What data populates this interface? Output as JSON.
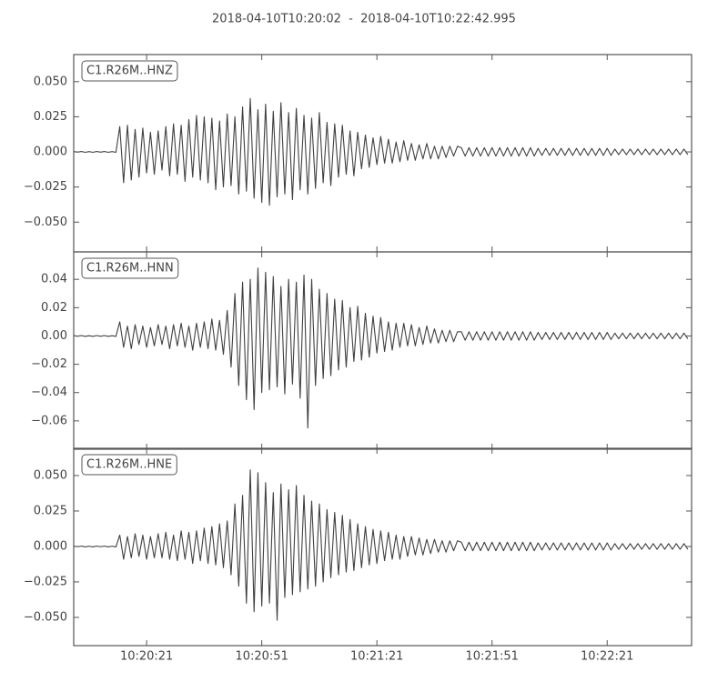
{
  "title": "2018-04-10T10:20:02  -  2018-04-10T10:22:42.995",
  "chart_data": [
    {
      "type": "line",
      "x": [
        0,
        1,
        2,
        3,
        4,
        5,
        6,
        7,
        8,
        9,
        10,
        11,
        12,
        13,
        14,
        15,
        16,
        17,
        18,
        19,
        20,
        21,
        22,
        23,
        24,
        25,
        26,
        27,
        28,
        29,
        30,
        31,
        32,
        33,
        34,
        35,
        36,
        37,
        38,
        39,
        40,
        41,
        42,
        43,
        44,
        45,
        46,
        47,
        48,
        49,
        50,
        51,
        52,
        53,
        54,
        55,
        56,
        57,
        58,
        59,
        60,
        61,
        62,
        63,
        64,
        65,
        66,
        67,
        68,
        69,
        70,
        71,
        72,
        73,
        74,
        75,
        76,
        77,
        78,
        79,
        80,
        81,
        82,
        83,
        84,
        85,
        86,
        87,
        88,
        89,
        90,
        91,
        92,
        93,
        94,
        95,
        96,
        97,
        98,
        99,
        100,
        101,
        102,
        103,
        104,
        105,
        106,
        107,
        108,
        109,
        110,
        111,
        112,
        113,
        114,
        115,
        116,
        117,
        118,
        119,
        120,
        121,
        122,
        123,
        124,
        125,
        126,
        127,
        128,
        129,
        130,
        131,
        132,
        133,
        134,
        135,
        136,
        137,
        138,
        139,
        140,
        141,
        142,
        143,
        144,
        145,
        146,
        147,
        148,
        149,
        150,
        151,
        152,
        153,
        154,
        155,
        156,
        157,
        158,
        159,
        160
      ],
      "series": [
        {
          "name": "C1.R26M..HNZ",
          "color": "#404040",
          "values": [
            0.0003,
            -0.0002,
            0.0003,
            -0.0003,
            0.0002,
            -0.0003,
            0.0003,
            -0.0002,
            0.0003,
            -0.0003,
            0.0002,
            -0.0003,
            0.018,
            -0.022,
            0.019,
            -0.02,
            0.016,
            -0.018,
            0.017,
            -0.015,
            0.014,
            -0.016,
            0.015,
            -0.013,
            0.018,
            -0.017,
            0.02,
            -0.016,
            0.019,
            -0.021,
            0.023,
            -0.018,
            0.026,
            -0.02,
            0.025,
            -0.022,
            0.024,
            -0.027,
            0.022,
            -0.025,
            0.027,
            -0.024,
            0.025,
            -0.03,
            0.032,
            -0.028,
            0.038,
            -0.033,
            0.03,
            -0.036,
            0.034,
            -0.038,
            0.029,
            -0.032,
            0.035,
            -0.03,
            0.028,
            -0.034,
            0.031,
            -0.027,
            0.026,
            -0.03,
            0.024,
            -0.026,
            0.028,
            -0.022,
            0.021,
            -0.024,
            0.02,
            -0.018,
            0.019,
            -0.016,
            0.015,
            -0.017,
            0.014,
            -0.012,
            0.012,
            -0.011,
            0.01,
            -0.009,
            0.011,
            -0.008,
            0.009,
            -0.008,
            0.007,
            -0.007,
            0.008,
            -0.006,
            0.006,
            -0.006,
            0.005,
            -0.005,
            0.006,
            -0.005,
            0.004,
            -0.005,
            0.004,
            -0.004,
            0.004,
            -0.003,
            0.004,
            0.003,
            -0.003,
            0.003,
            -0.003,
            0.003,
            -0.003,
            0.003,
            -0.003,
            0.003,
            -0.003,
            0.003,
            -0.003,
            0.003,
            -0.003,
            0.003,
            -0.003,
            0.003,
            -0.003,
            0.003,
            -0.003,
            0.0025,
            -0.0025,
            0.0025,
            -0.0025,
            0.0025,
            -0.0025,
            0.0025,
            -0.0025,
            0.0025,
            -0.0025,
            0.0025,
            -0.0025,
            0.0025,
            -0.0025,
            0.0025,
            -0.0025,
            0.0025,
            -0.0025,
            0.0025,
            -0.0025,
            0.002,
            -0.002,
            0.002,
            -0.002,
            0.002,
            -0.002,
            0.002,
            -0.002,
            0.002,
            -0.002,
            0.002,
            -0.002,
            0.002,
            -0.002,
            0.002,
            -0.002,
            0.002,
            -0.002,
            0.002,
            -0.002
          ]
        }
      ],
      "xlim": [
        0,
        160.995
      ],
      "xticks": [
        19,
        49,
        79,
        109,
        139
      ],
      "ylim": [
        -0.0712,
        0.0693
      ],
      "yticks": [
        {
          "value": 0.05,
          "label": "0.050"
        },
        {
          "value": 0.025,
          "label": "0.025"
        },
        {
          "value": 0,
          "label": "0.000"
        },
        {
          "value": -0.025,
          "label": "−0.025"
        },
        {
          "value": -0.05,
          "label": "−0.050"
        }
      ]
    },
    {
      "type": "line",
      "x": [
        0,
        1,
        2,
        3,
        4,
        5,
        6,
        7,
        8,
        9,
        10,
        11,
        12,
        13,
        14,
        15,
        16,
        17,
        18,
        19,
        20,
        21,
        22,
        23,
        24,
        25,
        26,
        27,
        28,
        29,
        30,
        31,
        32,
        33,
        34,
        35,
        36,
        37,
        38,
        39,
        40,
        41,
        42,
        43,
        44,
        45,
        46,
        47,
        48,
        49,
        50,
        51,
        52,
        53,
        54,
        55,
        56,
        57,
        58,
        59,
        60,
        61,
        62,
        63,
        64,
        65,
        66,
        67,
        68,
        69,
        70,
        71,
        72,
        73,
        74,
        75,
        76,
        77,
        78,
        79,
        80,
        81,
        82,
        83,
        84,
        85,
        86,
        87,
        88,
        89,
        90,
        91,
        92,
        93,
        94,
        95,
        96,
        97,
        98,
        99,
        100,
        101,
        102,
        103,
        104,
        105,
        106,
        107,
        108,
        109,
        110,
        111,
        112,
        113,
        114,
        115,
        116,
        117,
        118,
        119,
        120,
        121,
        122,
        123,
        124,
        125,
        126,
        127,
        128,
        129,
        130,
        131,
        132,
        133,
        134,
        135,
        136,
        137,
        138,
        139,
        140,
        141,
        142,
        143,
        144,
        145,
        146,
        147,
        148,
        149,
        150,
        151,
        152,
        153,
        154,
        155,
        156,
        157,
        158,
        159,
        160
      ],
      "series": [
        {
          "name": "C1.R26M..HNN",
          "color": "#404040",
          "values": [
            0.0003,
            -0.0002,
            0.0003,
            -0.0003,
            0.0002,
            -0.0003,
            0.0003,
            -0.0002,
            0.0003,
            -0.0003,
            0.0002,
            -0.0003,
            0.01,
            -0.008,
            0.007,
            -0.009,
            0.008,
            -0.006,
            0.007,
            -0.008,
            0.006,
            -0.007,
            0.008,
            -0.006,
            0.007,
            -0.009,
            0.008,
            -0.007,
            0.009,
            -0.008,
            0.007,
            -0.01,
            0.009,
            -0.008,
            0.01,
            -0.009,
            0.012,
            -0.01,
            0.011,
            -0.013,
            0.018,
            -0.022,
            0.03,
            -0.035,
            0.038,
            -0.045,
            0.04,
            -0.052,
            0.048,
            -0.04,
            0.045,
            -0.038,
            0.042,
            -0.036,
            0.035,
            -0.041,
            0.04,
            -0.034,
            0.038,
            -0.044,
            0.043,
            -0.065,
            0.04,
            -0.035,
            0.033,
            -0.03,
            0.03,
            -0.028,
            0.026,
            -0.024,
            0.025,
            -0.022,
            0.02,
            -0.018,
            0.021,
            -0.017,
            0.016,
            -0.015,
            0.014,
            -0.012,
            0.013,
            -0.011,
            0.01,
            -0.01,
            0.009,
            -0.008,
            0.009,
            -0.007,
            0.008,
            -0.007,
            0.006,
            -0.006,
            0.007,
            -0.005,
            0.005,
            -0.005,
            0.004,
            -0.004,
            0.004,
            -0.004,
            0.003,
            0.003,
            -0.003,
            0.003,
            -0.003,
            0.003,
            -0.003,
            0.003,
            -0.003,
            0.003,
            -0.003,
            0.003,
            -0.003,
            0.003,
            -0.003,
            0.003,
            -0.003,
            0.003,
            -0.003,
            0.003,
            -0.003,
            0.0025,
            -0.0025,
            0.0025,
            -0.0025,
            0.0025,
            -0.0025,
            0.0025,
            -0.0025,
            0.0025,
            -0.0025,
            0.0025,
            -0.0025,
            0.0025,
            -0.0025,
            0.0025,
            -0.0025,
            0.0025,
            -0.0025,
            0.0025,
            -0.0025,
            0.002,
            -0.002,
            0.002,
            -0.002,
            0.002,
            -0.002,
            0.002,
            -0.002,
            0.002,
            -0.002,
            0.002,
            -0.002,
            0.002,
            -0.002,
            0.002,
            -0.002,
            0.002,
            -0.002,
            0.002,
            -0.002
          ]
        }
      ],
      "xlim": [
        0,
        160.995
      ],
      "xticks": [
        19,
        49,
        79,
        109,
        139
      ],
      "ylim": [
        -0.08,
        0.0594
      ],
      "yticks": [
        {
          "value": 0.04,
          "label": "0.04"
        },
        {
          "value": 0.02,
          "label": "0.02"
        },
        {
          "value": 0,
          "label": "0.00"
        },
        {
          "value": -0.02,
          "label": "−0.02"
        },
        {
          "value": -0.04,
          "label": "−0.04"
        },
        {
          "value": -0.06,
          "label": "−0.06"
        }
      ]
    },
    {
      "type": "line",
      "x": [
        0,
        1,
        2,
        3,
        4,
        5,
        6,
        7,
        8,
        9,
        10,
        11,
        12,
        13,
        14,
        15,
        16,
        17,
        18,
        19,
        20,
        21,
        22,
        23,
        24,
        25,
        26,
        27,
        28,
        29,
        30,
        31,
        32,
        33,
        34,
        35,
        36,
        37,
        38,
        39,
        40,
        41,
        42,
        43,
        44,
        45,
        46,
        47,
        48,
        49,
        50,
        51,
        52,
        53,
        54,
        55,
        56,
        57,
        58,
        59,
        60,
        61,
        62,
        63,
        64,
        65,
        66,
        67,
        68,
        69,
        70,
        71,
        72,
        73,
        74,
        75,
        76,
        77,
        78,
        79,
        80,
        81,
        82,
        83,
        84,
        85,
        86,
        87,
        88,
        89,
        90,
        91,
        92,
        93,
        94,
        95,
        96,
        97,
        98,
        99,
        100,
        101,
        102,
        103,
        104,
        105,
        106,
        107,
        108,
        109,
        110,
        111,
        112,
        113,
        114,
        115,
        116,
        117,
        118,
        119,
        120,
        121,
        122,
        123,
        124,
        125,
        126,
        127,
        128,
        129,
        130,
        131,
        132,
        133,
        134,
        135,
        136,
        137,
        138,
        139,
        140,
        141,
        142,
        143,
        144,
        145,
        146,
        147,
        148,
        149,
        150,
        151,
        152,
        153,
        154,
        155,
        156,
        157,
        158,
        159,
        160
      ],
      "series": [
        {
          "name": "C1.R26M..HNE",
          "color": "#404040",
          "values": [
            0.0003,
            -0.0002,
            0.0003,
            -0.0003,
            0.0002,
            -0.0003,
            0.0003,
            -0.0002,
            0.0003,
            -0.0003,
            0.0002,
            -0.0003,
            0.008,
            -0.009,
            0.007,
            -0.008,
            0.009,
            -0.007,
            0.008,
            -0.009,
            0.007,
            -0.008,
            0.009,
            -0.008,
            0.01,
            -0.009,
            0.008,
            -0.01,
            0.011,
            -0.009,
            0.01,
            -0.012,
            0.011,
            -0.01,
            0.013,
            -0.012,
            0.014,
            -0.013,
            0.016,
            -0.015,
            0.018,
            -0.02,
            0.03,
            -0.028,
            0.036,
            -0.04,
            0.054,
            -0.046,
            0.052,
            -0.042,
            0.045,
            -0.04,
            0.038,
            -0.052,
            0.044,
            -0.036,
            0.04,
            -0.034,
            0.043,
            -0.032,
            0.036,
            -0.03,
            0.032,
            -0.028,
            0.03,
            -0.025,
            0.026,
            -0.022,
            0.024,
            -0.02,
            0.022,
            -0.018,
            0.019,
            -0.017,
            0.016,
            -0.015,
            0.014,
            -0.013,
            0.012,
            -0.012,
            0.011,
            -0.01,
            0.01,
            -0.009,
            0.008,
            -0.009,
            0.007,
            -0.007,
            0.007,
            -0.006,
            0.006,
            -0.006,
            0.005,
            -0.005,
            0.005,
            -0.004,
            0.004,
            -0.004,
            0.004,
            -0.003,
            0.004,
            0.003,
            -0.003,
            0.003,
            -0.003,
            0.003,
            -0.003,
            0.003,
            -0.003,
            0.003,
            -0.003,
            0.003,
            -0.003,
            0.003,
            -0.003,
            0.003,
            -0.003,
            0.003,
            -0.003,
            0.003,
            -0.003,
            0.0025,
            -0.0025,
            0.0025,
            -0.0025,
            0.0025,
            -0.0025,
            0.0025,
            -0.0025,
            0.0025,
            -0.0025,
            0.0025,
            -0.0025,
            0.0025,
            -0.0025,
            0.0025,
            -0.0025,
            0.0025,
            -0.0025,
            0.0025,
            -0.0025,
            0.002,
            -0.002,
            0.002,
            -0.002,
            0.002,
            -0.002,
            0.002,
            -0.002,
            0.002,
            -0.002,
            0.002,
            -0.002,
            0.002,
            -0.002,
            0.002,
            -0.002,
            0.002,
            -0.002,
            0.002,
            -0.002
          ]
        }
      ],
      "xlim": [
        0,
        160.995
      ],
      "xticks": [
        {
          "value": 19,
          "label": "10:20:21"
        },
        {
          "value": 49,
          "label": "10:20:51"
        },
        {
          "value": 79,
          "label": "10:21:21"
        },
        {
          "value": 109,
          "label": "10:21:51"
        },
        {
          "value": 139,
          "label": "10:22:21"
        }
      ],
      "ylim": [
        -0.0699,
        0.0692
      ],
      "yticks": [
        {
          "value": 0.05,
          "label": "0.050"
        },
        {
          "value": 0.025,
          "label": "0.025"
        },
        {
          "value": 0,
          "label": "0.000"
        },
        {
          "value": -0.025,
          "label": "−0.025"
        },
        {
          "value": -0.05,
          "label": "−0.050"
        }
      ]
    }
  ]
}
